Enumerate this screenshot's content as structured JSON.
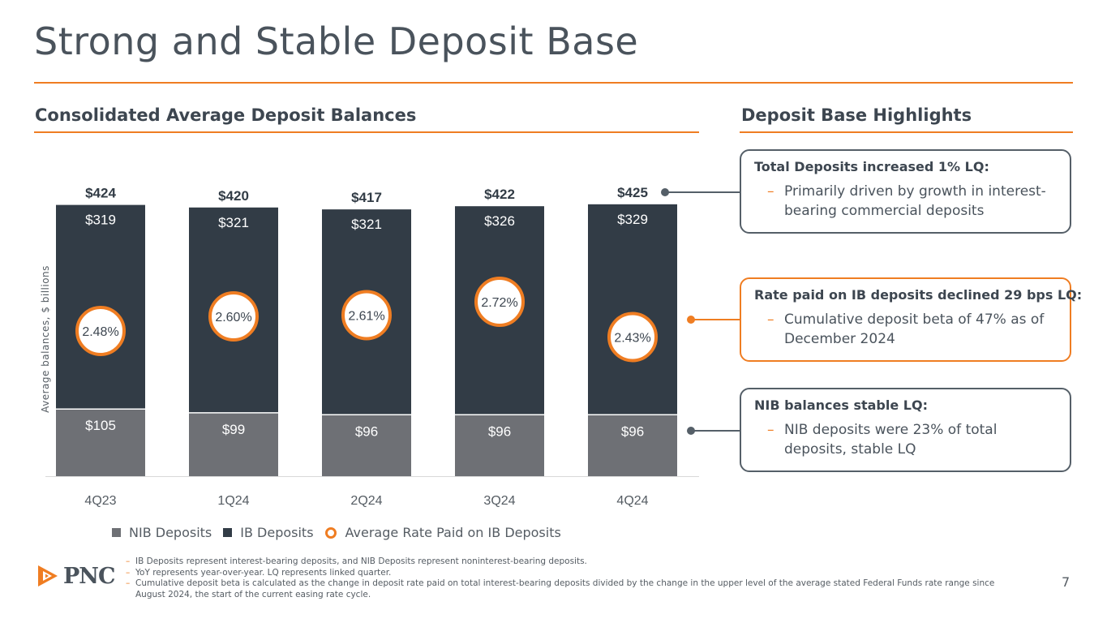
{
  "title": "Strong and Stable Deposit Base",
  "chart_heading": "Consolidated Average Deposit Balances",
  "highlights_heading": "Deposit Base Highlights",
  "colors": {
    "accent": "#ef7d22",
    "ib": "#323c46",
    "nib": "#6e7075",
    "text": "#4a535c"
  },
  "chart_data": {
    "type": "bar",
    "stacked": true,
    "categories": [
      "4Q23",
      "1Q24",
      "2Q24",
      "3Q24",
      "4Q24"
    ],
    "series": [
      {
        "name": "NIB Deposits",
        "values": [
          105,
          99,
          96,
          96,
          96
        ],
        "labels": [
          "$105",
          "$99",
          "$96",
          "$96",
          "$96"
        ]
      },
      {
        "name": "IB Deposits",
        "values": [
          319,
          321,
          321,
          326,
          329
        ],
        "labels": [
          "$319",
          "$321",
          "$321",
          "$326",
          "$329"
        ]
      }
    ],
    "totals": [
      424,
      420,
      417,
      422,
      425
    ],
    "total_labels": [
      "$424",
      "$420",
      "$417",
      "$422",
      "$425"
    ],
    "rate_series": {
      "name": "Average Rate Paid on IB Deposits",
      "values": [
        2.48,
        2.6,
        2.61,
        2.72,
        2.43
      ],
      "labels": [
        "2.48%",
        "2.60%",
        "2.61%",
        "2.72%",
        "2.43%"
      ]
    },
    "ylabel": "Average balances, $ billions",
    "ylim": [
      0,
      440
    ],
    "legend_position": "bottom"
  },
  "highlights": [
    {
      "heading": "Total Deposits increased 1% LQ:",
      "bullet": "Primarily driven by growth in interest-bearing commercial deposits"
    },
    {
      "heading": "Rate paid on IB deposits declined 29 bps LQ:",
      "bullet": "Cumulative deposit beta of 47% as of December 2024"
    },
    {
      "heading": "NIB balances stable LQ:",
      "bullet": "NIB deposits were 23% of total deposits, stable LQ"
    }
  ],
  "footnotes": [
    "IB Deposits represent interest-bearing deposits, and NIB Deposits represent noninterest-bearing deposits.",
    "YoY represents year-over-year. LQ represents linked quarter.",
    "Cumulative deposit beta is calculated as the change in deposit rate paid on total interest-bearing deposits divided by the change in the upper level of the average stated Federal Funds rate range since August 2024, the start of the current easing rate cycle."
  ],
  "bullet_dash": "–",
  "logo_text": "PNC",
  "page_number": "7"
}
